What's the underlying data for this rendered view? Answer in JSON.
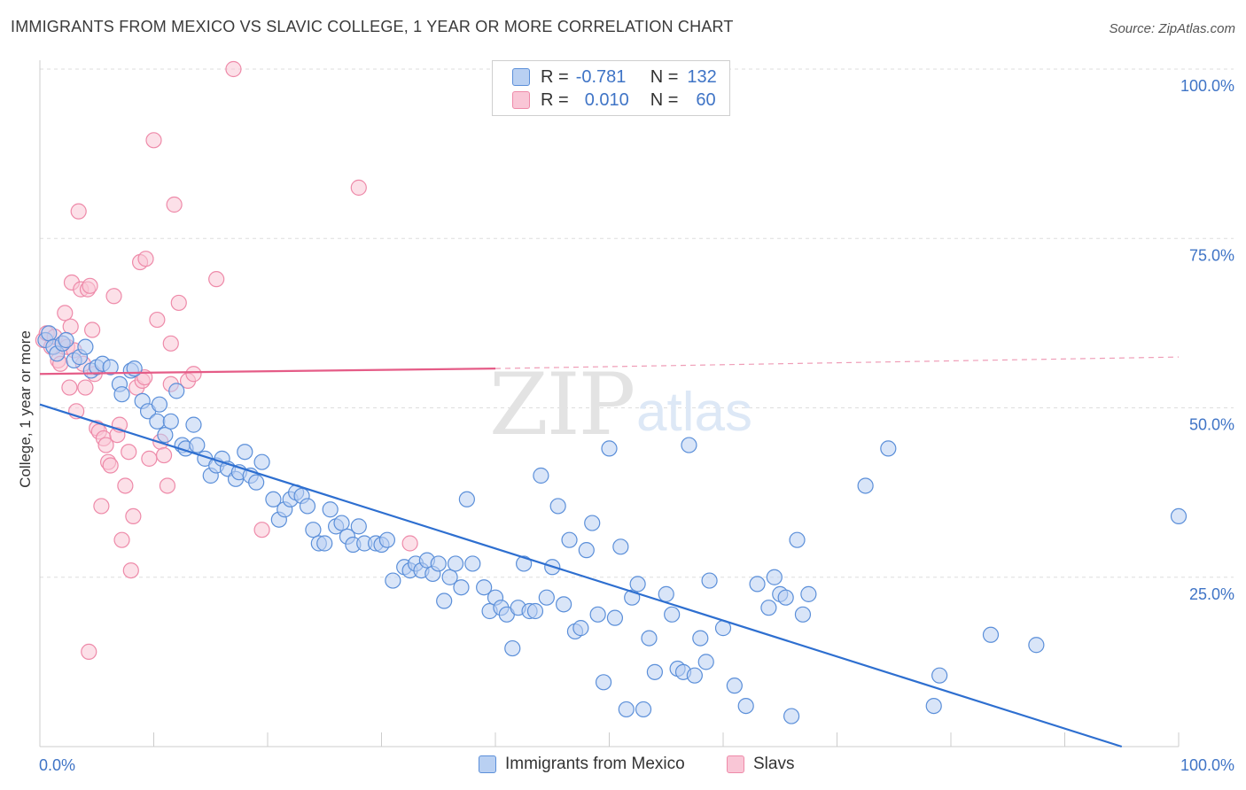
{
  "title": "IMMIGRANTS FROM MEXICO VS SLAVIC COLLEGE, 1 YEAR OR MORE CORRELATION CHART",
  "source": "Source: ZipAtlas.com",
  "watermark": {
    "zip": "ZIP",
    "atlas": "atlas"
  },
  "legend_box": {
    "row1": {
      "r_label": "R =",
      "r_value": "-0.781",
      "n_label": "N =",
      "n_value": "132"
    },
    "row2": {
      "r_label": "R =",
      "r_value": "0.010",
      "n_label": "N =",
      "n_value": "60"
    }
  },
  "colors": {
    "blue_fill": "#b9d0f2",
    "blue_stroke": "#5b8fd9",
    "blue_line": "#2e6fd0",
    "pink_fill": "#f9c6d6",
    "pink_stroke": "#ee8aa9",
    "pink_line": "#e55c87",
    "tick_text": "#3f74c6",
    "grid": "#dddddd"
  },
  "chart_data": {
    "type": "scatter",
    "title": "IMMIGRANTS FROM MEXICO VS SLAVIC COLLEGE, 1 YEAR OR MORE CORRELATION CHART",
    "xlabel": "",
    "ylabel": "College, 1 year or more",
    "xlim": [
      0,
      100
    ],
    "ylim": [
      0,
      100
    ],
    "x_tick_labels": [
      "0.0%",
      "100.0%"
    ],
    "y_tick_labels": [
      "100.0%",
      "75.0%",
      "50.0%",
      "25.0%"
    ],
    "y_tick_values": [
      100,
      75,
      50,
      25
    ],
    "grid": true,
    "legend": "bottom-center",
    "series": [
      {
        "name": "Immigrants from Mexico",
        "color": "#5b8fd9",
        "trend": {
          "x": [
            0,
            95
          ],
          "y": [
            50.5,
            0
          ]
        },
        "points": [
          [
            0.5,
            60
          ],
          [
            0.8,
            61
          ],
          [
            1.2,
            59
          ],
          [
            1.5,
            58
          ],
          [
            2.0,
            59.5
          ],
          [
            2.3,
            60
          ],
          [
            3.0,
            57
          ],
          [
            3.5,
            57.5
          ],
          [
            4.0,
            59
          ],
          [
            4.5,
            55.5
          ],
          [
            5.0,
            56
          ],
          [
            5.5,
            56.5
          ],
          [
            6.2,
            56
          ],
          [
            7.0,
            53.5
          ],
          [
            7.2,
            52
          ],
          [
            8.0,
            55.5
          ],
          [
            8.3,
            55.8
          ],
          [
            9.0,
            51
          ],
          [
            9.5,
            49.5
          ],
          [
            10.3,
            48
          ],
          [
            10.5,
            50.5
          ],
          [
            11.0,
            46
          ],
          [
            11.5,
            48
          ],
          [
            12.0,
            52.5
          ],
          [
            12.5,
            44.5
          ],
          [
            12.8,
            44
          ],
          [
            13.5,
            47.5
          ],
          [
            13.8,
            44.5
          ],
          [
            14.5,
            42.5
          ],
          [
            15.0,
            40
          ],
          [
            15.5,
            41.5
          ],
          [
            16.0,
            42.5
          ],
          [
            16.5,
            41
          ],
          [
            17.2,
            39.5
          ],
          [
            17.5,
            40.5
          ],
          [
            18.0,
            43.5
          ],
          [
            18.5,
            40
          ],
          [
            19.0,
            39
          ],
          [
            19.5,
            42
          ],
          [
            20.5,
            36.5
          ],
          [
            21.0,
            33.5
          ],
          [
            21.5,
            35
          ],
          [
            22.0,
            36.5
          ],
          [
            22.5,
            37.5
          ],
          [
            23.0,
            37
          ],
          [
            23.5,
            35.5
          ],
          [
            24.0,
            32
          ],
          [
            24.5,
            30
          ],
          [
            25.0,
            30
          ],
          [
            25.5,
            35
          ],
          [
            26.0,
            32.5
          ],
          [
            26.5,
            33
          ],
          [
            27.0,
            31
          ],
          [
            27.5,
            29.8
          ],
          [
            28.0,
            32.5
          ],
          [
            28.5,
            30
          ],
          [
            29.5,
            30
          ],
          [
            30.0,
            29.8
          ],
          [
            30.5,
            30.5
          ],
          [
            31.0,
            24.5
          ],
          [
            32.0,
            26.5
          ],
          [
            32.5,
            26
          ],
          [
            33.0,
            27
          ],
          [
            33.5,
            26
          ],
          [
            34.0,
            27.5
          ],
          [
            34.5,
            25.5
          ],
          [
            35.0,
            27
          ],
          [
            35.5,
            21.5
          ],
          [
            36.0,
            25
          ],
          [
            36.5,
            27
          ],
          [
            37.0,
            23.5
          ],
          [
            37.5,
            36.5
          ],
          [
            38.0,
            27
          ],
          [
            39.0,
            23.5
          ],
          [
            39.5,
            20
          ],
          [
            40.0,
            22
          ],
          [
            40.5,
            20.5
          ],
          [
            41.0,
            19.5
          ],
          [
            41.5,
            14.5
          ],
          [
            42.0,
            20.5
          ],
          [
            42.5,
            27
          ],
          [
            43.0,
            20
          ],
          [
            43.5,
            20
          ],
          [
            44.0,
            40
          ],
          [
            44.5,
            22
          ],
          [
            45.0,
            26.5
          ],
          [
            45.5,
            35.5
          ],
          [
            46.0,
            21
          ],
          [
            46.5,
            30.5
          ],
          [
            47.0,
            17
          ],
          [
            47.5,
            17.5
          ],
          [
            48.0,
            29
          ],
          [
            48.5,
            33
          ],
          [
            49.0,
            19.5
          ],
          [
            49.5,
            9.5
          ],
          [
            50.0,
            44
          ],
          [
            50.5,
            19
          ],
          [
            51.0,
            29.5
          ],
          [
            51.5,
            5.5
          ],
          [
            52.0,
            22
          ],
          [
            52.5,
            24
          ],
          [
            53.0,
            5.5
          ],
          [
            53.5,
            16
          ],
          [
            54.0,
            11
          ],
          [
            55.0,
            22.5
          ],
          [
            55.5,
            19.5
          ],
          [
            56.0,
            11.5
          ],
          [
            56.5,
            11
          ],
          [
            57.0,
            44.5
          ],
          [
            57.5,
            10.5
          ],
          [
            58.0,
            16
          ],
          [
            58.5,
            12.5
          ],
          [
            58.8,
            24.5
          ],
          [
            60.0,
            17.5
          ],
          [
            61.0,
            9
          ],
          [
            62.0,
            6
          ],
          [
            63.0,
            24
          ],
          [
            64.0,
            20.5
          ],
          [
            64.5,
            25
          ],
          [
            65.0,
            22.5
          ],
          [
            65.5,
            22
          ],
          [
            66.0,
            4.5
          ],
          [
            66.5,
            30.5
          ],
          [
            67.0,
            19.5
          ],
          [
            67.5,
            22.5
          ],
          [
            72.5,
            38.5
          ],
          [
            74.5,
            44
          ],
          [
            78.5,
            6
          ],
          [
            79.0,
            10.5
          ],
          [
            83.5,
            16.5
          ],
          [
            87.5,
            15
          ],
          [
            100,
            34
          ]
        ]
      },
      {
        "name": "Slavs",
        "color": "#ee8aa9",
        "trend": {
          "x": [
            0,
            40
          ],
          "y": [
            55.0,
            55.8
          ]
        },
        "trend_dashed": {
          "x": [
            40,
            100
          ],
          "y": [
            55.8,
            57.5
          ]
        },
        "points": [
          [
            0.3,
            60
          ],
          [
            0.6,
            61
          ],
          [
            1.0,
            59
          ],
          [
            1.3,
            60.5
          ],
          [
            1.6,
            57
          ],
          [
            1.8,
            56.5
          ],
          [
            2.0,
            59.5
          ],
          [
            2.2,
            64
          ],
          [
            2.4,
            59
          ],
          [
            2.6,
            53
          ],
          [
            2.8,
            68.5
          ],
          [
            3.0,
            58.5
          ],
          [
            3.2,
            49.5
          ],
          [
            3.4,
            79
          ],
          [
            3.6,
            67.5
          ],
          [
            3.8,
            56.5
          ],
          [
            4.0,
            53
          ],
          [
            4.2,
            67.5
          ],
          [
            4.4,
            68
          ],
          [
            4.6,
            61.5
          ],
          [
            4.8,
            55
          ],
          [
            5.0,
            47
          ],
          [
            5.2,
            46.5
          ],
          [
            5.4,
            35.5
          ],
          [
            5.6,
            45.5
          ],
          [
            5.8,
            44.5
          ],
          [
            6.0,
            42
          ],
          [
            6.2,
            41.5
          ],
          [
            6.5,
            66.5
          ],
          [
            6.8,
            46
          ],
          [
            7.0,
            47.5
          ],
          [
            7.2,
            30.5
          ],
          [
            7.5,
            38.5
          ],
          [
            7.8,
            43.5
          ],
          [
            8.0,
            26
          ],
          [
            8.2,
            34
          ],
          [
            8.5,
            53
          ],
          [
            8.8,
            71.5
          ],
          [
            9.0,
            54
          ],
          [
            9.3,
            72
          ],
          [
            9.6,
            42.5
          ],
          [
            10.0,
            89.5
          ],
          [
            10.3,
            63
          ],
          [
            10.6,
            45
          ],
          [
            10.9,
            43
          ],
          [
            11.2,
            38.5
          ],
          [
            11.5,
            59.5
          ],
          [
            11.8,
            80
          ],
          [
            12.2,
            65.5
          ],
          [
            13.0,
            54
          ],
          [
            13.5,
            55
          ],
          [
            15.5,
            69
          ],
          [
            17.0,
            100
          ],
          [
            19.5,
            32
          ],
          [
            28.0,
            82.5
          ],
          [
            32.5,
            30
          ],
          [
            4.3,
            14
          ],
          [
            9.2,
            54.5
          ],
          [
            11.5,
            53.5
          ],
          [
            2.7,
            62
          ]
        ]
      }
    ]
  },
  "bottom_legend": {
    "blue_label": "Immigrants from Mexico",
    "pink_label": "Slavs"
  }
}
